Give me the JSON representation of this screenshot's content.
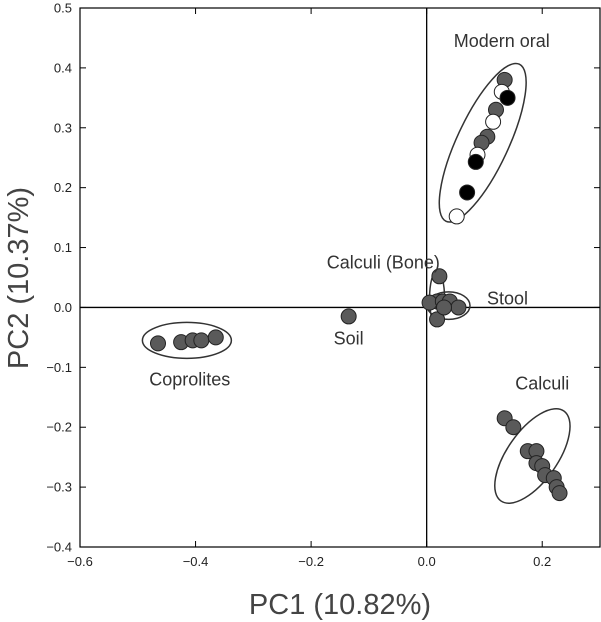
{
  "chart_data": {
    "type": "scatter",
    "title": "",
    "xlabel": "PC1 (10.82%)",
    "ylabel": "PC2 (10.37%)",
    "xlim": [
      -0.6,
      0.3
    ],
    "ylim": [
      -0.4,
      0.5
    ],
    "x_ticks": [
      "−0.6",
      "−0.4",
      "−0.2",
      "0.0",
      "0.2"
    ],
    "y_ticks": [
      "−0.4",
      "−0.3",
      "−0.2",
      "−0.1",
      "0.0",
      "0.1",
      "0.2",
      "0.3",
      "0.4",
      "0.5"
    ],
    "grid": false,
    "reference_lines": {
      "x": 0.0,
      "y": 0.0
    },
    "colors": {
      "gray": "#5a5a5a",
      "black": "#000000",
      "white": "#ffffff",
      "edge": "#222222"
    },
    "series": [
      {
        "label": "Coprolites",
        "color": "gray",
        "points": [
          [
            -0.465,
            -0.06
          ],
          [
            -0.425,
            -0.058
          ],
          [
            -0.405,
            -0.055
          ],
          [
            -0.39,
            -0.055
          ],
          [
            -0.365,
            -0.05
          ]
        ],
        "ellipse": {
          "cx": -0.415,
          "cy": -0.055,
          "rx": 0.077,
          "ry": 0.03,
          "angle_deg": 0
        }
      },
      {
        "label": "Soil",
        "color": "gray",
        "points": [
          [
            -0.135,
            -0.015
          ]
        ],
        "ellipse": null
      },
      {
        "label": "Calculi (Bone)",
        "color": "gray",
        "points": [
          [
            0.022,
            0.052
          ],
          [
            0.018,
            0.01
          ],
          [
            0.018,
            -0.02
          ]
        ],
        "ellipse": {
          "cx": 0.018,
          "cy": 0.015,
          "rx": 0.013,
          "ry": 0.046,
          "angle_deg": 0
        }
      },
      {
        "label": "Stool",
        "color": "gray",
        "points": [
          [
            0.005,
            0.008
          ],
          [
            0.028,
            0.01
          ],
          [
            0.04,
            0.01
          ],
          [
            0.055,
            0.0
          ],
          [
            0.03,
            0.0
          ]
        ],
        "ellipse": {
          "cx": 0.038,
          "cy": 0.003,
          "rx": 0.037,
          "ry": 0.023,
          "angle_deg": 0
        }
      },
      {
        "label": "Calculi",
        "color": "gray",
        "points": [
          [
            0.135,
            -0.185
          ],
          [
            0.15,
            -0.2
          ],
          [
            0.175,
            -0.24
          ],
          [
            0.19,
            -0.24
          ],
          [
            0.19,
            -0.26
          ],
          [
            0.2,
            -0.265
          ],
          [
            0.205,
            -0.28
          ],
          [
            0.22,
            -0.285
          ],
          [
            0.225,
            -0.3
          ],
          [
            0.23,
            -0.31
          ]
        ],
        "ellipse": {
          "cx": 0.183,
          "cy": -0.248,
          "rx": 0.095,
          "ry": 0.042,
          "angle_deg": -55
        }
      },
      {
        "label": "Modern oral",
        "color": "mixed",
        "points": [
          {
            "x": 0.135,
            "y": 0.38,
            "color": "gray"
          },
          {
            "x": 0.13,
            "y": 0.36,
            "color": "white"
          },
          {
            "x": 0.14,
            "y": 0.35,
            "color": "black"
          },
          {
            "x": 0.12,
            "y": 0.33,
            "color": "gray"
          },
          {
            "x": 0.115,
            "y": 0.31,
            "color": "white"
          },
          {
            "x": 0.105,
            "y": 0.285,
            "color": "gray"
          },
          {
            "x": 0.095,
            "y": 0.275,
            "color": "gray"
          },
          {
            "x": 0.088,
            "y": 0.255,
            "color": "white"
          },
          {
            "x": 0.085,
            "y": 0.243,
            "color": "black"
          },
          {
            "x": 0.07,
            "y": 0.192,
            "color": "black"
          },
          {
            "x": 0.052,
            "y": 0.152,
            "color": "white"
          }
        ],
        "ellipse": {
          "cx": 0.097,
          "cy": 0.275,
          "rx": 0.15,
          "ry": 0.043,
          "angle_deg": -65
        }
      }
    ],
    "annotations": [
      {
        "text": "Modern oral",
        "x": 0.13,
        "y": 0.445
      },
      {
        "text": "Calculi (Bone)",
        "x": -0.075,
        "y": 0.075
      },
      {
        "text": "Stool",
        "x": 0.14,
        "y": 0.015
      },
      {
        "text": "Soil",
        "x": -0.135,
        "y": -0.052
      },
      {
        "text": "Coprolites",
        "x": -0.41,
        "y": -0.12
      },
      {
        "text": "Calculi",
        "x": 0.2,
        "y": -0.127
      }
    ]
  }
}
